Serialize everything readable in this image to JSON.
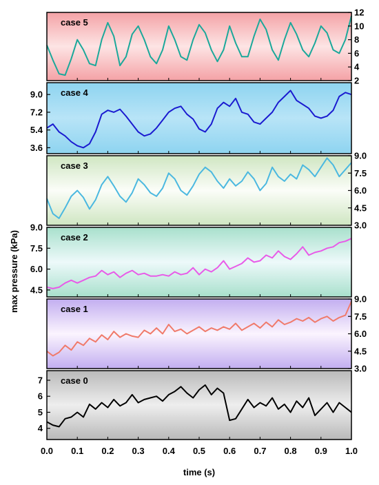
{
  "chart_data": {
    "type": "line",
    "xlabel": "time  (s)",
    "ylabel": "max  pressure  (kPa)",
    "x_ticks": [
      "0.0",
      "0.1",
      "0.2",
      "0.3",
      "0.4",
      "0.5",
      "0.6",
      "0.7",
      "0.8",
      "0.9",
      "1.0"
    ],
    "xlim": [
      0,
      1
    ],
    "panels": [
      {
        "label": "case  5",
        "color": "#1aa89a",
        "axis_side": "right",
        "ylim": [
          2,
          12
        ],
        "yticks": [
          2,
          4,
          6,
          8,
          10,
          12
        ],
        "ytick_labels": [
          "2",
          "4",
          "6",
          "8",
          "10",
          "12"
        ],
        "bg_top": "#f4a2a6",
        "bg_mid": "#fde4e4",
        "bg_bottom": "#f4a2a6",
        "x": [
          0.0,
          0.02,
          0.04,
          0.06,
          0.08,
          0.1,
          0.12,
          0.14,
          0.16,
          0.18,
          0.2,
          0.22,
          0.24,
          0.26,
          0.28,
          0.3,
          0.32,
          0.34,
          0.36,
          0.38,
          0.4,
          0.42,
          0.44,
          0.46,
          0.48,
          0.5,
          0.52,
          0.54,
          0.56,
          0.58,
          0.6,
          0.62,
          0.64,
          0.66,
          0.68,
          0.7,
          0.72,
          0.74,
          0.76,
          0.78,
          0.8,
          0.82,
          0.84,
          0.86,
          0.88,
          0.9,
          0.92,
          0.94,
          0.96,
          0.98,
          1.0
        ],
        "values": [
          7.2,
          5.0,
          3.0,
          2.8,
          5.2,
          8.0,
          6.5,
          4.5,
          4.2,
          8.0,
          10.5,
          8.5,
          4.2,
          5.5,
          8.8,
          10.0,
          8.0,
          5.5,
          4.5,
          6.5,
          10.0,
          8.0,
          5.5,
          5.0,
          8.0,
          10.2,
          9.0,
          6.5,
          4.8,
          6.5,
          10.0,
          7.5,
          5.5,
          5.5,
          8.5,
          11.0,
          9.5,
          6.5,
          5.0,
          8.0,
          10.5,
          8.8,
          6.5,
          5.5,
          7.5,
          10.0,
          9.0,
          6.5,
          6.0,
          8.0,
          11.5
        ]
      },
      {
        "label": "case  4",
        "color": "#1a1ad0",
        "axis_side": "left",
        "ylim": [
          3.0,
          10.2
        ],
        "yticks": [
          3.6,
          5.4,
          7.2,
          9.0
        ],
        "ytick_labels": [
          "3.6",
          "5.4",
          "7.2",
          "9.0"
        ],
        "bg_top": "#8ed4f0",
        "bg_mid": "#b8e4f7",
        "bg_bottom": "#8ed4f0",
        "x": [
          0.0,
          0.02,
          0.04,
          0.06,
          0.08,
          0.1,
          0.12,
          0.14,
          0.16,
          0.18,
          0.2,
          0.22,
          0.24,
          0.26,
          0.28,
          0.3,
          0.32,
          0.34,
          0.36,
          0.38,
          0.4,
          0.42,
          0.44,
          0.46,
          0.48,
          0.5,
          0.52,
          0.54,
          0.56,
          0.58,
          0.6,
          0.62,
          0.64,
          0.66,
          0.68,
          0.7,
          0.72,
          0.74,
          0.76,
          0.78,
          0.8,
          0.82,
          0.84,
          0.86,
          0.88,
          0.9,
          0.92,
          0.94,
          0.96,
          0.98,
          1.0
        ],
        "values": [
          5.6,
          6.0,
          5.2,
          4.8,
          4.2,
          3.8,
          3.6,
          4.0,
          5.2,
          7.0,
          7.4,
          7.2,
          7.5,
          6.8,
          6.0,
          5.2,
          4.8,
          5.0,
          5.6,
          6.4,
          7.2,
          7.6,
          7.8,
          7.0,
          6.5,
          5.5,
          5.2,
          6.0,
          7.6,
          8.2,
          7.8,
          8.6,
          7.2,
          7.0,
          6.2,
          6.0,
          6.6,
          7.2,
          8.2,
          8.8,
          9.4,
          8.4,
          8.0,
          7.6,
          6.8,
          6.6,
          6.8,
          7.4,
          8.8,
          9.2,
          9.0
        ]
      },
      {
        "label": "case  3",
        "color": "#4ab8e0",
        "axis_side": "right",
        "ylim": [
          3.0,
          9.0
        ],
        "yticks": [
          3.0,
          4.5,
          6.0,
          7.5,
          9.0
        ],
        "ytick_labels": [
          "3.0",
          "4.5",
          "6.0",
          "7.5",
          "9.0"
        ],
        "bg_top": "#cfe6c2",
        "bg_mid": "#fbfdf8",
        "bg_bottom": "#cfe6c2",
        "x": [
          0.0,
          0.02,
          0.04,
          0.06,
          0.08,
          0.1,
          0.12,
          0.14,
          0.16,
          0.18,
          0.2,
          0.22,
          0.24,
          0.26,
          0.28,
          0.3,
          0.32,
          0.34,
          0.36,
          0.38,
          0.4,
          0.42,
          0.44,
          0.46,
          0.48,
          0.5,
          0.52,
          0.54,
          0.56,
          0.58,
          0.6,
          0.62,
          0.64,
          0.66,
          0.68,
          0.7,
          0.72,
          0.74,
          0.76,
          0.78,
          0.8,
          0.82,
          0.84,
          0.86,
          0.88,
          0.9,
          0.92,
          0.94,
          0.96,
          0.98,
          1.0
        ],
        "values": [
          5.3,
          4.0,
          3.6,
          4.5,
          5.5,
          6.0,
          5.4,
          4.4,
          5.2,
          6.5,
          7.2,
          6.4,
          5.5,
          5.0,
          5.8,
          7.0,
          6.5,
          5.8,
          5.5,
          6.2,
          7.5,
          7.0,
          6.0,
          5.6,
          6.4,
          7.4,
          8.0,
          7.6,
          6.8,
          6.2,
          7.0,
          6.4,
          6.8,
          7.6,
          7.0,
          6.0,
          6.6,
          8.0,
          7.2,
          6.8,
          7.4,
          7.0,
          8.2,
          7.8,
          7.2,
          8.0,
          8.8,
          8.2,
          7.2,
          7.8,
          8.4
        ]
      },
      {
        "label": "case  2",
        "color": "#e85ae8",
        "axis_side": "left",
        "ylim": [
          4.0,
          9.0
        ],
        "yticks": [
          4.5,
          6.0,
          7.5,
          9.0
        ],
        "ytick_labels": [
          "4.5",
          "6.0",
          "7.5",
          "9.0"
        ],
        "bg_top": "#a8e0cc",
        "bg_mid": "#edf9fa",
        "bg_bottom": "#a8e0cc",
        "x": [
          0.0,
          0.02,
          0.04,
          0.06,
          0.08,
          0.1,
          0.12,
          0.14,
          0.16,
          0.18,
          0.2,
          0.22,
          0.24,
          0.26,
          0.28,
          0.3,
          0.32,
          0.34,
          0.36,
          0.38,
          0.4,
          0.42,
          0.44,
          0.46,
          0.48,
          0.5,
          0.52,
          0.54,
          0.56,
          0.58,
          0.6,
          0.62,
          0.64,
          0.66,
          0.68,
          0.7,
          0.72,
          0.74,
          0.76,
          0.78,
          0.8,
          0.82,
          0.84,
          0.86,
          0.88,
          0.9,
          0.92,
          0.94,
          0.96,
          0.98,
          1.0
        ],
        "values": [
          4.7,
          4.6,
          4.7,
          5.0,
          5.2,
          5.0,
          5.2,
          5.4,
          5.5,
          5.9,
          5.6,
          5.8,
          5.4,
          5.7,
          5.9,
          5.6,
          5.7,
          5.5,
          5.5,
          5.6,
          5.5,
          5.8,
          5.6,
          5.7,
          6.1,
          5.6,
          6.0,
          5.8,
          6.1,
          6.6,
          6.0,
          6.2,
          6.4,
          6.8,
          6.5,
          6.6,
          7.0,
          6.8,
          7.3,
          6.9,
          6.7,
          7.1,
          7.6,
          7.0,
          7.2,
          7.3,
          7.5,
          7.6,
          7.9,
          8.0,
          8.2
        ]
      },
      {
        "label": "case  1",
        "color": "#f07a6a",
        "axis_side": "right",
        "ylim": [
          3.0,
          9.0
        ],
        "yticks": [
          3.0,
          4.5,
          6.0,
          7.5,
          9.0
        ],
        "ytick_labels": [
          "3.0",
          "4.5",
          "6.0",
          "7.5",
          "9.0"
        ],
        "bg_top": "#c2aef0",
        "bg_mid": "#fbf4fe",
        "bg_bottom": "#c2aef0",
        "x": [
          0.0,
          0.02,
          0.04,
          0.06,
          0.08,
          0.1,
          0.12,
          0.14,
          0.16,
          0.18,
          0.2,
          0.22,
          0.24,
          0.26,
          0.28,
          0.3,
          0.32,
          0.34,
          0.36,
          0.38,
          0.4,
          0.42,
          0.44,
          0.46,
          0.48,
          0.5,
          0.52,
          0.54,
          0.56,
          0.58,
          0.6,
          0.62,
          0.64,
          0.66,
          0.68,
          0.7,
          0.72,
          0.74,
          0.76,
          0.78,
          0.8,
          0.82,
          0.84,
          0.86,
          0.88,
          0.9,
          0.92,
          0.94,
          0.96,
          0.98,
          1.0
        ],
        "values": [
          4.5,
          4.1,
          4.4,
          5.0,
          4.6,
          5.3,
          5.0,
          5.6,
          5.3,
          5.9,
          5.5,
          6.2,
          5.7,
          6.0,
          5.8,
          5.7,
          6.3,
          6.0,
          6.5,
          6.0,
          6.8,
          6.2,
          6.4,
          6.0,
          6.3,
          6.6,
          6.2,
          6.5,
          6.3,
          6.6,
          6.4,
          6.9,
          6.3,
          6.6,
          6.9,
          6.5,
          7.0,
          6.6,
          7.2,
          6.8,
          7.0,
          7.3,
          7.1,
          7.4,
          7.0,
          7.3,
          7.5,
          7.1,
          7.4,
          7.6,
          8.8
        ]
      },
      {
        "label": "case  0",
        "color": "#000000",
        "axis_side": "left",
        "ylim": [
          3.3,
          7.6
        ],
        "yticks": [
          4,
          5,
          6,
          7
        ],
        "ytick_labels": [
          "4",
          "5",
          "6",
          "7"
        ],
        "bg_top": "#b9b9b9",
        "bg_mid": "#eeeeee",
        "bg_bottom": "#b9b9b9",
        "x": [
          0.0,
          0.02,
          0.04,
          0.06,
          0.08,
          0.1,
          0.12,
          0.14,
          0.16,
          0.18,
          0.2,
          0.22,
          0.24,
          0.26,
          0.28,
          0.3,
          0.32,
          0.34,
          0.36,
          0.38,
          0.4,
          0.42,
          0.44,
          0.46,
          0.48,
          0.5,
          0.52,
          0.54,
          0.56,
          0.58,
          0.6,
          0.62,
          0.64,
          0.66,
          0.68,
          0.7,
          0.72,
          0.74,
          0.76,
          0.78,
          0.8,
          0.82,
          0.84,
          0.86,
          0.88,
          0.9,
          0.92,
          0.94,
          0.96,
          0.98,
          1.0
        ],
        "values": [
          4.4,
          4.2,
          4.1,
          4.6,
          4.7,
          5.0,
          4.7,
          5.5,
          5.2,
          5.6,
          5.3,
          5.8,
          5.4,
          5.6,
          6.1,
          5.6,
          5.8,
          5.9,
          6.0,
          5.7,
          6.1,
          6.3,
          6.6,
          6.2,
          5.9,
          6.4,
          6.7,
          6.1,
          6.5,
          6.2,
          4.5,
          4.6,
          5.2,
          5.8,
          5.3,
          5.6,
          5.4,
          5.9,
          5.2,
          5.5,
          5.0,
          5.7,
          5.3,
          5.9,
          4.8,
          5.2,
          5.6,
          5.0,
          5.6,
          5.3,
          5.0
        ]
      }
    ]
  }
}
